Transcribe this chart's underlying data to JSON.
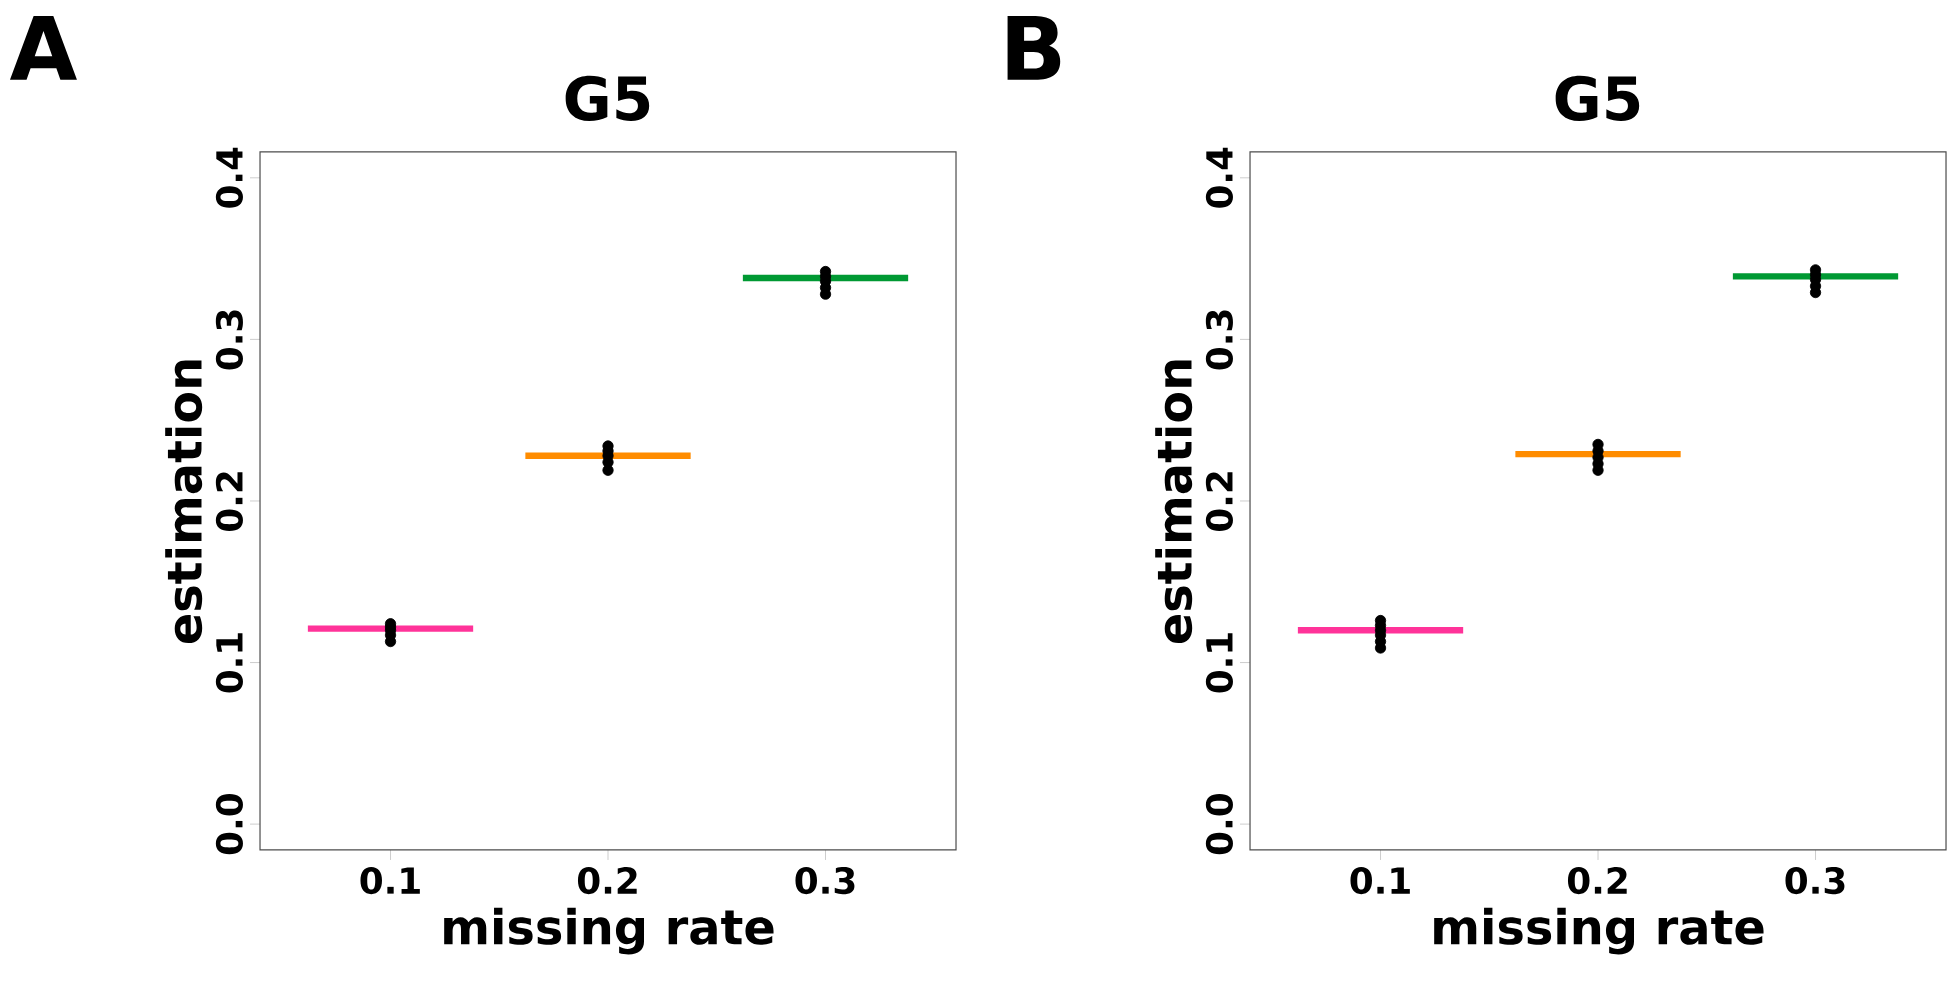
{
  "chart_data": [
    {
      "type": "scatter",
      "title": "G5",
      "xlabel": "missing rate",
      "ylabel": "estimation",
      "annotations": [
        "A"
      ],
      "xlim": [
        0.04,
        0.36
      ],
      "ylim": [
        -0.016,
        0.416
      ],
      "xticks": [
        0.1,
        0.2,
        0.3
      ],
      "yticks": [
        {
          "value": 0,
          "label": "0.0"
        },
        0.1,
        0.2,
        0.3,
        0.4
      ],
      "series": [
        {
          "type": "line",
          "color": "#ff3399",
          "x": [
            0.062,
            0.138
          ],
          "values": [
            0.121,
            0.121
          ],
          "marker": "none"
        },
        {
          "type": "line",
          "color": "#ff8c00",
          "x": [
            0.162,
            0.238
          ],
          "values": [
            0.228,
            0.228
          ],
          "marker": "none"
        },
        {
          "type": "line",
          "color": "#009933",
          "x": [
            0.262,
            0.338
          ],
          "values": [
            0.338,
            0.338
          ],
          "marker": "none"
        },
        {
          "color": "#000000",
          "x": [
            0.1,
            0.1,
            0.1,
            0.1,
            0.1,
            0.2,
            0.2,
            0.2,
            0.2,
            0.2,
            0.3,
            0.3,
            0.3,
            0.3,
            0.3
          ],
          "values": [
            0.113,
            0.117,
            0.12,
            0.122,
            0.124,
            0.219,
            0.224,
            0.228,
            0.231,
            0.234,
            0.328,
            0.332,
            0.336,
            0.339,
            0.342
          ],
          "marker": "circle"
        }
      ]
    },
    {
      "type": "scatter",
      "title": "G5",
      "xlabel": "missing rate",
      "ylabel": "estimation",
      "annotations": [
        "B"
      ],
      "xlim": [
        0.04,
        0.36
      ],
      "ylim": [
        -0.016,
        0.416
      ],
      "xticks": [
        0.1,
        0.2,
        0.3
      ],
      "yticks": [
        {
          "value": 0,
          "label": "0.0"
        },
        0.1,
        0.2,
        0.3,
        0.4
      ],
      "series": [
        {
          "type": "line",
          "color": "#ff3399",
          "x": [
            0.062,
            0.138
          ],
          "values": [
            0.12,
            0.12
          ],
          "marker": "none"
        },
        {
          "type": "line",
          "color": "#ff8c00",
          "x": [
            0.162,
            0.238
          ],
          "values": [
            0.229,
            0.229
          ],
          "marker": "none"
        },
        {
          "type": "line",
          "color": "#009933",
          "x": [
            0.262,
            0.338
          ],
          "values": [
            0.339,
            0.339
          ],
          "marker": "none"
        },
        {
          "color": "#000000",
          "x": [
            0.1,
            0.1,
            0.1,
            0.1,
            0.1,
            0.1,
            0.2,
            0.2,
            0.2,
            0.2,
            0.2,
            0.3,
            0.3,
            0.3,
            0.3,
            0.3
          ],
          "values": [
            0.109,
            0.113,
            0.117,
            0.12,
            0.123,
            0.126,
            0.219,
            0.223,
            0.227,
            0.231,
            0.235,
            0.329,
            0.333,
            0.337,
            0.34,
            0.343
          ],
          "marker": "circle"
        }
      ]
    }
  ]
}
